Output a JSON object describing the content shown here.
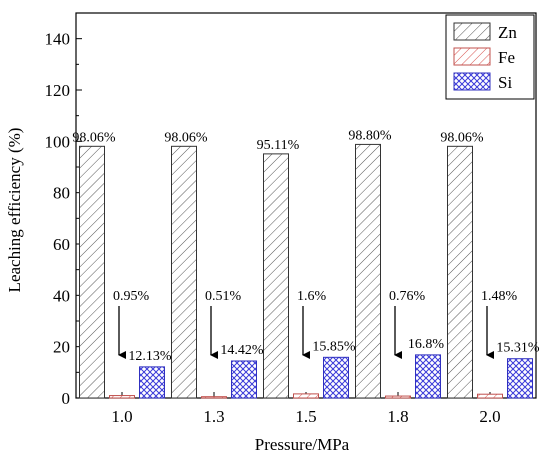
{
  "chart_data": {
    "type": "bar",
    "title": "",
    "xlabel": "Pressure/MPa",
    "ylabel": "Leaching efficiency (%)",
    "ylim": [
      0,
      150
    ],
    "yticks": [
      "0",
      "20",
      "40",
      "60",
      "80",
      "100",
      "120",
      "140"
    ],
    "categories": [
      "1.0",
      "1.3",
      "1.5",
      "1.8",
      "2.0"
    ],
    "grid": false,
    "legend_position": "top-right",
    "series": [
      {
        "name": "Zn",
        "color": "#555555",
        "pattern": "diagonal-hatch",
        "values": [
          98.06,
          98.06,
          95.11,
          98.8,
          98.06
        ],
        "labels": [
          "98.06%",
          "98.06%",
          "95.11%",
          "98.80%",
          "98.06%"
        ]
      },
      {
        "name": "Fe",
        "color": "#d9534f",
        "pattern": "diagonal-hatch",
        "values": [
          0.95,
          0.51,
          1.6,
          0.76,
          1.48
        ],
        "labels": [
          "0.95%",
          "0.51%",
          "1.6%",
          "0.76%",
          "1.48%"
        ]
      },
      {
        "name": "Si",
        "color": "#3a3ad9",
        "pattern": "cross-hatch",
        "values": [
          12.13,
          14.42,
          15.85,
          16.8,
          15.31
        ],
        "labels": [
          "12.13%",
          "14.42%",
          "15.85%",
          "16.8%",
          "15.31%"
        ]
      }
    ]
  }
}
